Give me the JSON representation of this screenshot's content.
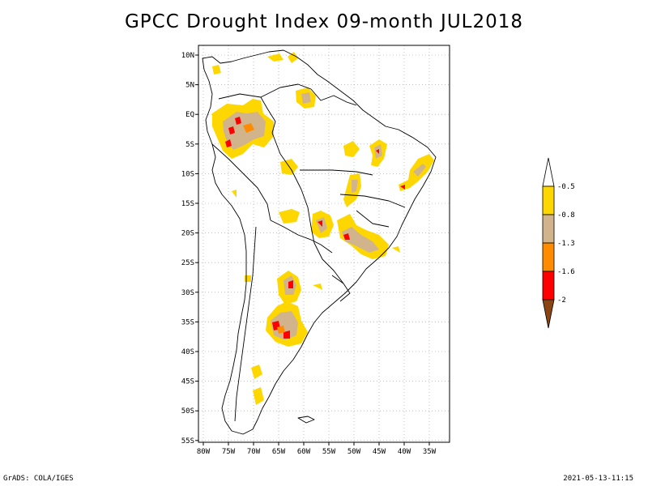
{
  "title": "GPCC Drought Index 09-month JUL2018",
  "footer": {
    "left": "GrADS: COLA/IGES",
    "right": "2021-05-13-11:15"
  },
  "map": {
    "region": "South America",
    "lat_labels": [
      "10N",
      "5N",
      "EQ",
      "5S",
      "10S",
      "15S",
      "20S",
      "25S",
      "30S",
      "35S",
      "40S",
      "45S",
      "50S",
      "55S"
    ],
    "lon_labels": [
      "80W",
      "75W",
      "70W",
      "65W",
      "60W",
      "55W",
      "50W",
      "45W",
      "40W",
      "35W"
    ],
    "grid": true
  },
  "legend": {
    "bins": [
      {
        "color": "#ffffff",
        "label": "-0.5"
      },
      {
        "color": "#ffd700",
        "label": "-0.8"
      },
      {
        "color": "#d2b48c",
        "label": "-1.3"
      },
      {
        "color": "#ff8c00",
        "label": "-1.6"
      },
      {
        "color": "#ff0000",
        "label": "-2"
      },
      {
        "color": "#8b4513",
        "label": ""
      }
    ]
  },
  "colors": {
    "yellow": "#ffd700",
    "tan": "#d2b48c",
    "orange": "#ff8c00",
    "red": "#ff0000",
    "brown": "#8b4513"
  }
}
